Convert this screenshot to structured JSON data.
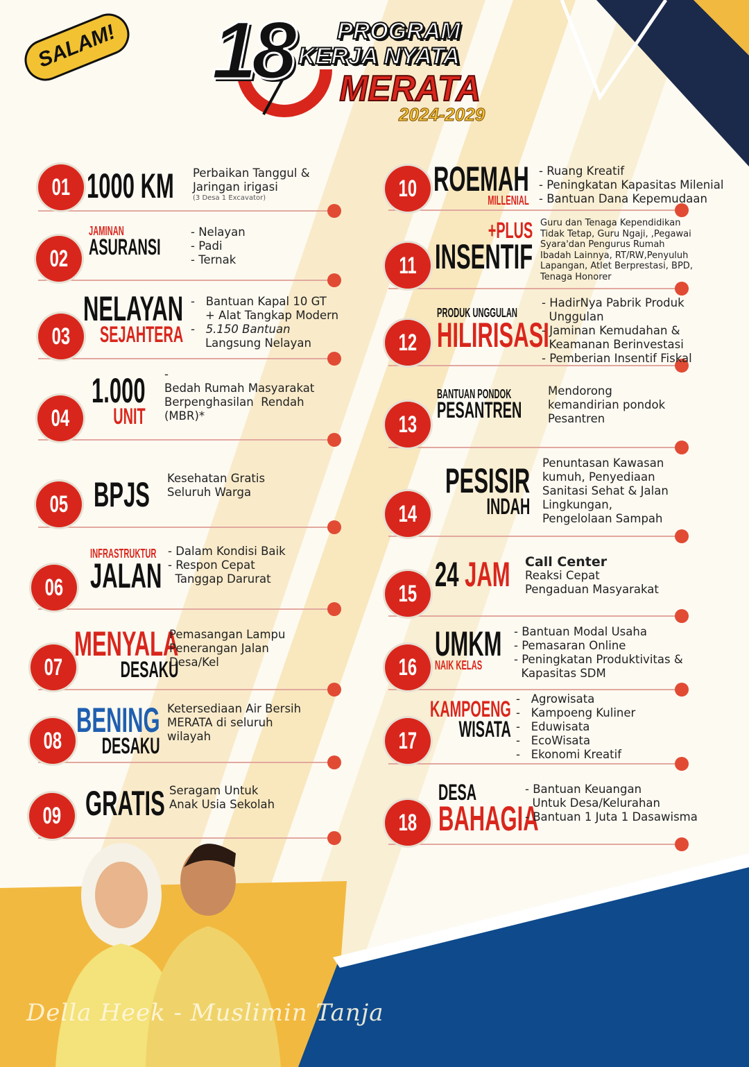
{
  "header": {
    "greeting": "SALAM!",
    "number": "18",
    "line1": "PROGRAM",
    "line2": "KERJA NYATA",
    "line3": "MERATA",
    "period": "2024-2029"
  },
  "colors": {
    "red": "#d9261c",
    "black": "#111111",
    "blue": "#1f5fb0",
    "navy": "#1b2a4a",
    "yellow": "#f2b940"
  },
  "items": [
    {
      "num": "01",
      "title": [
        {
          "text": "1000 KM",
          "size": "big",
          "color": "black"
        }
      ],
      "desc": [
        "Perbaikan Tanggul &",
        "Jaringan irigasi"
      ],
      "note": "(3 Desa 1 Excavator)"
    },
    {
      "num": "02",
      "title": [
        {
          "text": "JAMINAN",
          "size": "small",
          "color": "red"
        },
        {
          "text": "ASURANSI",
          "size": "med",
          "color": "black"
        }
      ],
      "desc": [
        "- Nelayan",
        "- Padi",
        "- Ternak"
      ]
    },
    {
      "num": "03",
      "title": [
        {
          "text": "NELAYAN",
          "size": "big",
          "color": "black"
        },
        {
          "text": "SEJAHTERA",
          "size": "med",
          "color": "red"
        }
      ],
      "desc": [
        "-   Bantuan Kapal 10 GT",
        "    + Alat Tangkap Modern",
        "-   5.150 Bantuan",
        "    Langsung Nelayan"
      ]
    },
    {
      "num": "04",
      "title": [
        {
          "text": "1.000",
          "size": "big",
          "color": "black"
        },
        {
          "text": "UNIT",
          "size": "med",
          "color": "red"
        }
      ],
      "desc": [
        "-",
        "Bedah Rumah Masyarakat",
        "Berpenghasilan  Rendah",
        "(MBR)*"
      ]
    },
    {
      "num": "05",
      "title": [
        {
          "text": "BPJS",
          "size": "big",
          "color": "black"
        }
      ],
      "desc": [
        "Kesehatan Gratis",
        "Seluruh Warga"
      ]
    },
    {
      "num": "06",
      "title": [
        {
          "text": "INFRASTRUKTUR",
          "size": "small",
          "color": "red"
        },
        {
          "text": "JALAN",
          "size": "big",
          "color": "black"
        }
      ],
      "desc": [
        "- Dalam Kondisi Baik",
        "- Respon Cepat",
        "  Tanggap Darurat"
      ]
    },
    {
      "num": "07",
      "title": [
        {
          "text": "MENYALA",
          "size": "big",
          "color": "red"
        },
        {
          "text": "DESAKU",
          "size": "med",
          "color": "black"
        }
      ],
      "desc": [
        "Pemasangan Lampu",
        "Penerangan Jalan",
        "Desa/Kel"
      ]
    },
    {
      "num": "08",
      "title": [
        {
          "text": "BENING",
          "size": "big",
          "color": "blue"
        },
        {
          "text": "DESAKU",
          "size": "med",
          "color": "black"
        }
      ],
      "desc": [
        "Ketersediaan Air Bersih",
        "MERATA di seluruh",
        "wilayah"
      ]
    },
    {
      "num": "09",
      "title": [
        {
          "text": "GRATIS",
          "size": "big",
          "color": "black"
        }
      ],
      "desc": [
        "Seragam Untuk",
        "Anak Usia Sekolah"
      ]
    },
    {
      "num": "10",
      "title": [
        {
          "text": "ROEMAH",
          "size": "big",
          "color": "black"
        },
        {
          "text": "MILLENIAL",
          "size": "small",
          "color": "red"
        }
      ],
      "desc": [
        "- Ruang Kreatif",
        "- Peningkatan Kapasitas Milenial",
        "- Bantuan Dana Kepemudaan"
      ]
    },
    {
      "num": "11",
      "title": [
        {
          "text": "+PLUS",
          "size": "med",
          "color": "red"
        },
        {
          "text": "INSENTIF",
          "size": "big",
          "color": "black"
        }
      ],
      "desc": [
        "Guru dan Tenaga Kependidikan",
        "Tidak Tetap, Guru Ngaji, ,Pegawai",
        "Syara'dan Pengurus Rumah",
        "Ibadah Lainnya, RT/RW,Penyuluh",
        "Lapangan, Atlet Berprestasi, BPD,",
        "Tenaga Honorer"
      ]
    },
    {
      "num": "12",
      "title": [
        {
          "text": "PRODUK UNGGULAN",
          "size": "small",
          "color": "black"
        },
        {
          "text": "HILIRISASI",
          "size": "big",
          "color": "red"
        }
      ],
      "desc": [
        "- HadirNya Pabrik Produk",
        "  Unggulan",
        "- Jaminan Kemudahan &",
        "  Keamanan Berinvestasi",
        "- Pemberian Insentif Fiskal"
      ]
    },
    {
      "num": "13",
      "title": [
        {
          "text": "BANTUAN PONDOK",
          "size": "small",
          "color": "black"
        },
        {
          "text": "PESANTREN",
          "size": "med",
          "color": "black"
        }
      ],
      "desc": [
        "Mendorong",
        "kemandirian pondok",
        "Pesantren"
      ]
    },
    {
      "num": "14",
      "title": [
        {
          "text": "PESISIR",
          "size": "big",
          "color": "black"
        },
        {
          "text": "INDAH",
          "size": "med",
          "color": "black"
        }
      ],
      "desc": [
        "Penuntasan Kawasan",
        "kumuh, Penyediaan",
        "Sanitasi Sehat & Jalan",
        "Lingkungan,",
        "Pengelolaan Sampah"
      ]
    },
    {
      "num": "15",
      "title": [
        {
          "text": "24 ",
          "size": "big",
          "color": "black"
        },
        {
          "text": "JAM",
          "size": "big",
          "color": "red"
        }
      ],
      "heading": "Call Center",
      "desc": [
        "Reaksi Cepat",
        "Pengaduan Masyarakat"
      ]
    },
    {
      "num": "16",
      "title": [
        {
          "text": "UMKM",
          "size": "big",
          "color": "black"
        },
        {
          "text": "NAIK KELAS",
          "size": "small",
          "color": "red"
        }
      ],
      "desc": [
        "- Bantuan Modal Usaha",
        "- Pemasaran Online",
        "- Peningkatan Produktivitas &",
        "  Kapasitas SDM"
      ]
    },
    {
      "num": "17",
      "title": [
        {
          "text": "KAMPOENG",
          "size": "med",
          "color": "red"
        },
        {
          "text": "WISATA",
          "size": "med",
          "color": "black"
        }
      ],
      "desc": [
        "-   Agrowisata",
        "-   Kampoeng Kuliner",
        "-   Eduwisata",
        "-   EcoWisata",
        "-   Ekonomi Kreatif"
      ]
    },
    {
      "num": "18",
      "title": [
        {
          "text": "DESA",
          "size": "med",
          "color": "black"
        },
        {
          "text": "BAHAGIA",
          "size": "big",
          "color": "red"
        }
      ],
      "desc": [
        "- Bantuan Keuangan",
        "  Untuk Desa/Kelurahan",
        "- Bantuan 1 Juta 1 Dasawisma"
      ]
    }
  ],
  "signature": "Della Heek - Muslimin Tanja"
}
